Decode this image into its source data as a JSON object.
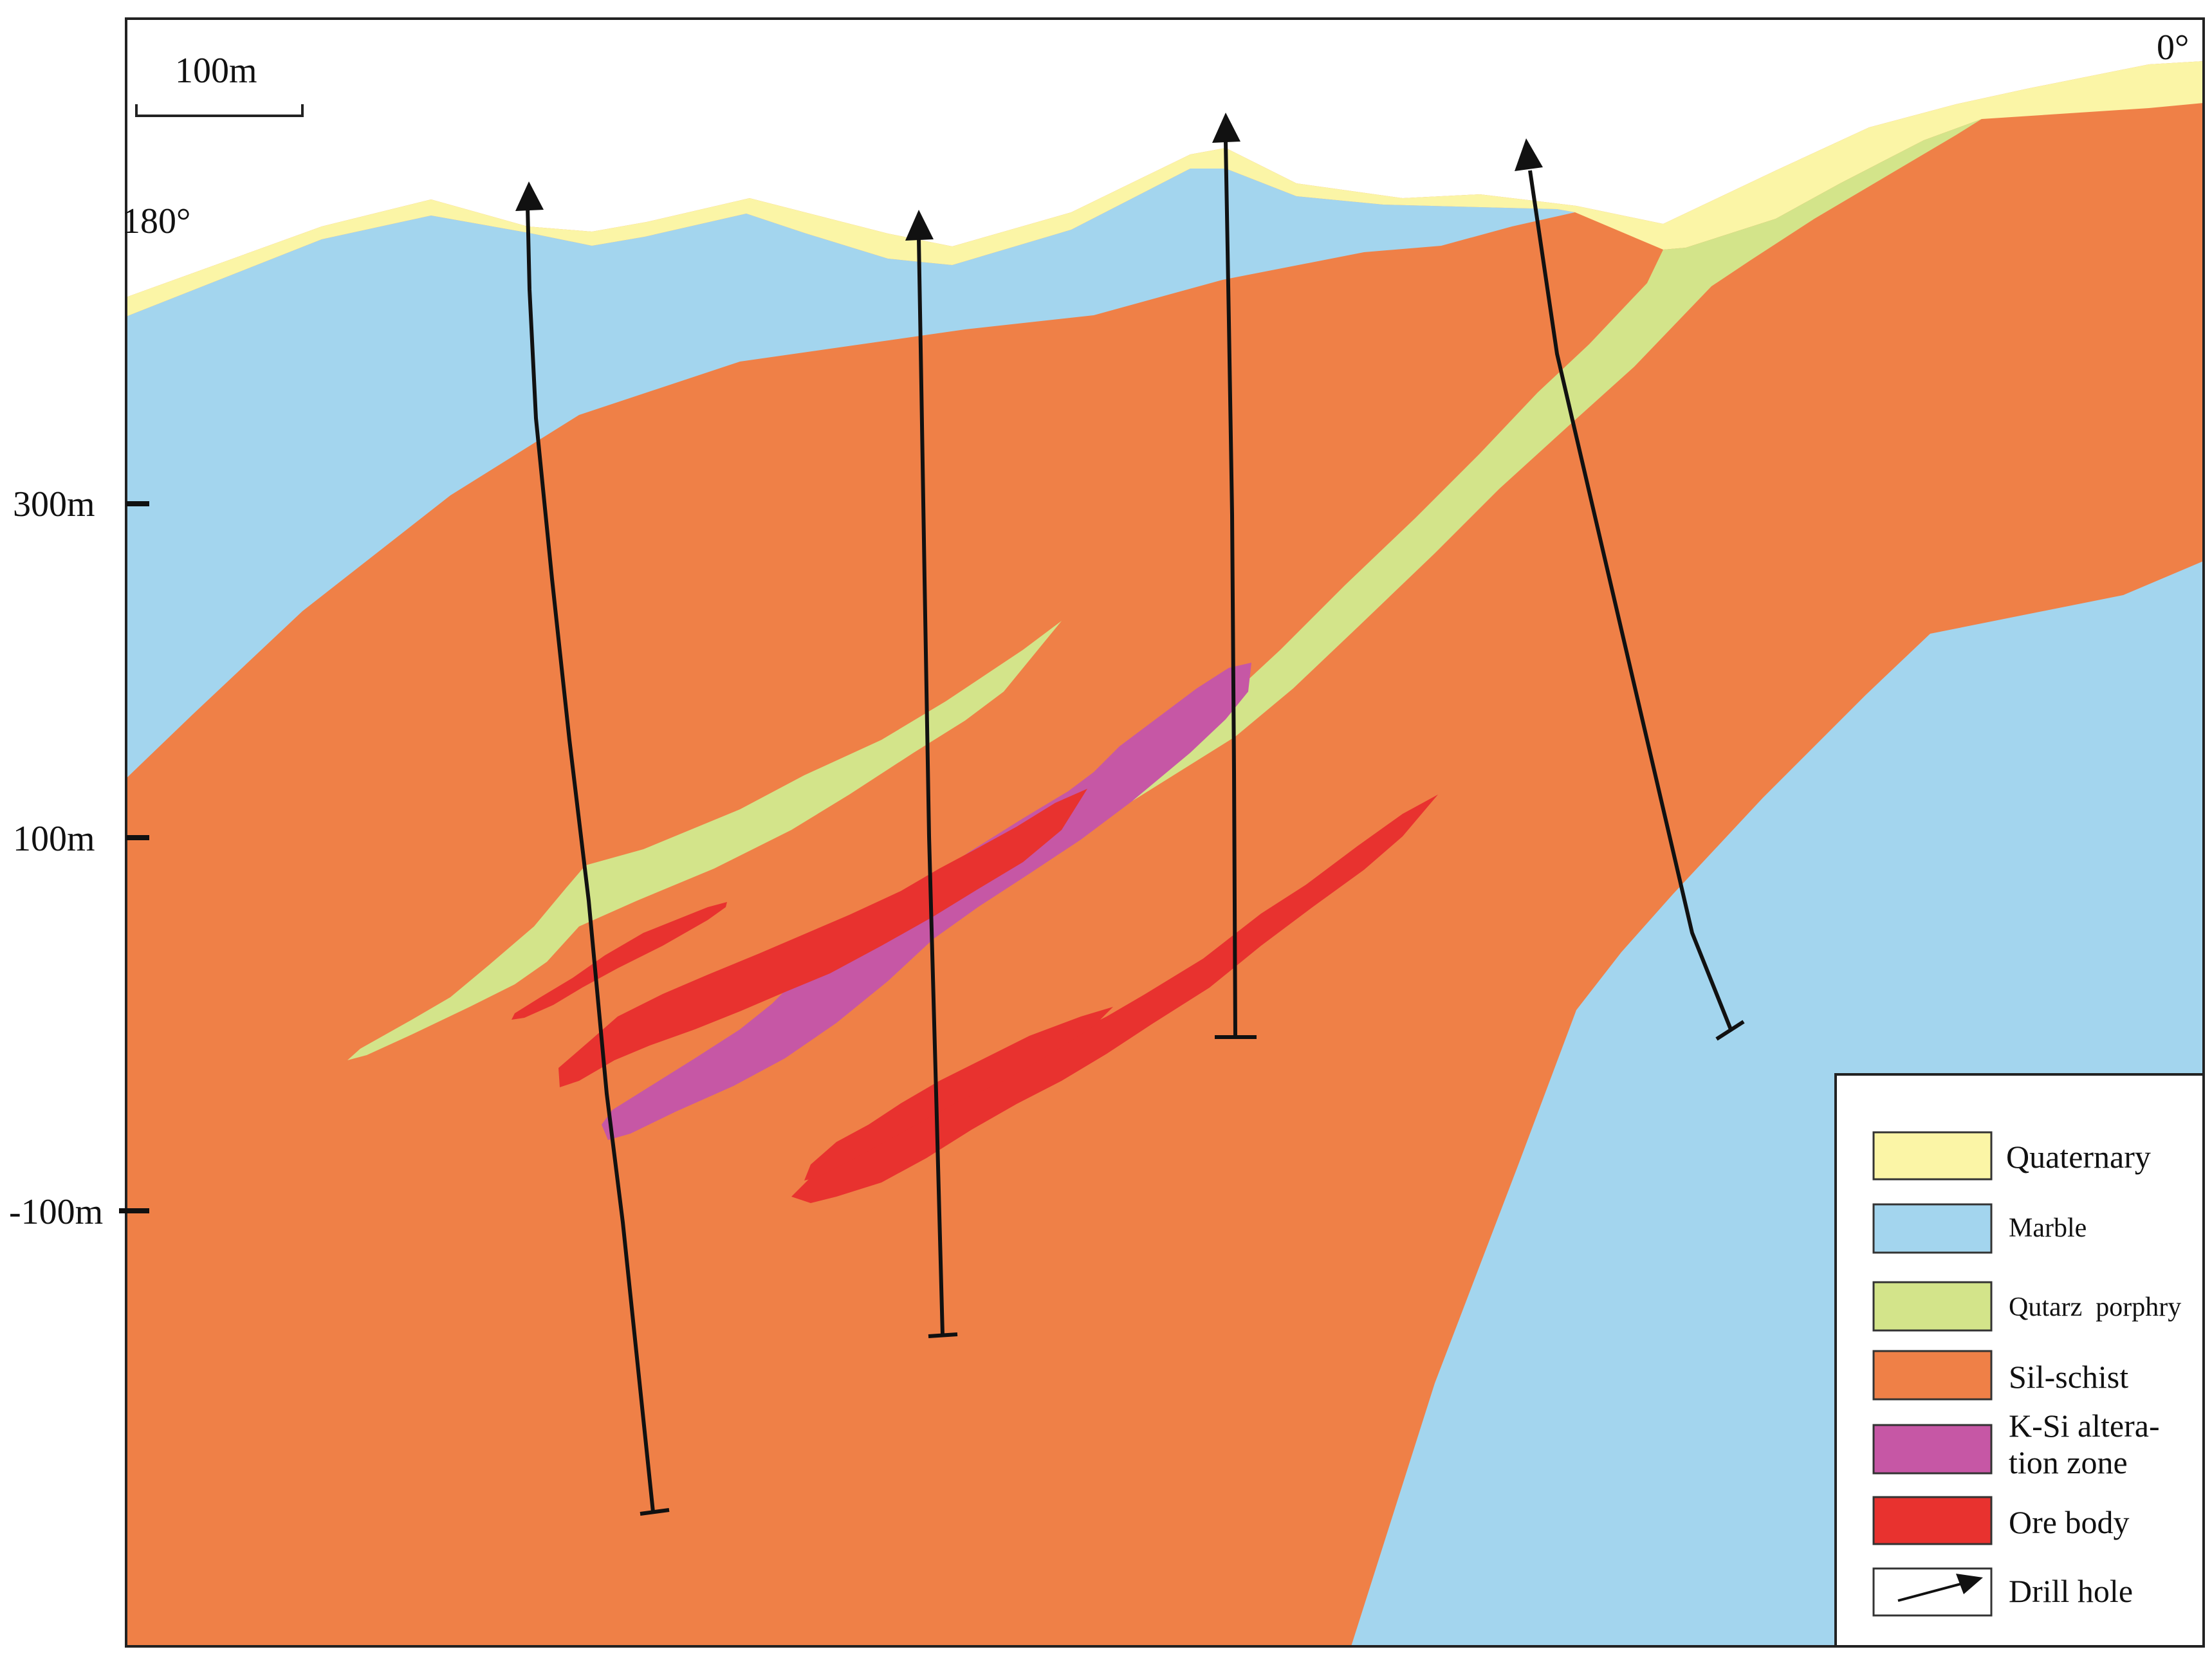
{
  "scale_bar": {
    "label": "100m"
  },
  "azimuth": {
    "left": "180°",
    "right": "0°"
  },
  "elevation_labels": [
    "300m",
    "100m",
    "-100m"
  ],
  "colors": {
    "quaternary": "#FBF5A6",
    "marble": "#A3D5EE",
    "quartz_porphyry": "#D3E48A",
    "sil_schist": "#EF8047",
    "k_si_alteration": "#C657A5",
    "ore_body": "#E8322F",
    "drill_hole": "#111111"
  },
  "legend": {
    "quaternary": "Quaternary",
    "marble": "Marble",
    "quartz_porphyry": "Qutarz  porphry",
    "sil_schist": "Sil-schist",
    "k_si_line1": "K-Si altera-",
    "k_si_line2": "tion zone",
    "ore_body": "Ore body",
    "drill_hole": "Drill hole"
  }
}
